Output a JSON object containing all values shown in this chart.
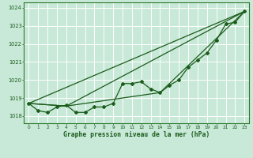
{
  "title": "Graphe pression niveau de la mer (hPa)",
  "bg_color": "#c8e8d8",
  "plot_bg_color": "#c8e8d8",
  "grid_color": "#ffffff",
  "line_color": "#1a5c1a",
  "border_color": "#2d7a2d",
  "xlim": [
    -0.5,
    23.5
  ],
  "ylim": [
    1017.6,
    1024.3
  ],
  "yticks": [
    1018,
    1019,
    1020,
    1021,
    1022,
    1023,
    1024
  ],
  "xticks": [
    0,
    1,
    2,
    3,
    4,
    5,
    6,
    7,
    8,
    9,
    10,
    11,
    12,
    13,
    14,
    15,
    16,
    17,
    18,
    19,
    20,
    21,
    22,
    23
  ],
  "series_main": [
    1018.7,
    1018.3,
    1018.2,
    1018.5,
    1018.6,
    1018.2,
    1018.2,
    1018.5,
    1018.5,
    1018.7,
    1019.8,
    1019.8,
    1019.9,
    1019.5,
    1019.3,
    1019.7,
    1020.0,
    1020.7,
    1021.1,
    1021.5,
    1022.2,
    1023.1,
    1023.2,
    1023.8
  ],
  "line1_x": [
    0,
    23
  ],
  "line1_y": [
    1018.7,
    1023.8
  ],
  "line2_x": [
    0,
    23
  ],
  "line2_y": [
    1018.7,
    1023.8
  ],
  "line3_x": [
    0,
    4,
    23
  ],
  "line3_y": [
    1018.7,
    1018.55,
    1023.8
  ],
  "line4_x": [
    0,
    4,
    14,
    23
  ],
  "line4_y": [
    1018.7,
    1018.55,
    1019.3,
    1023.8
  ]
}
